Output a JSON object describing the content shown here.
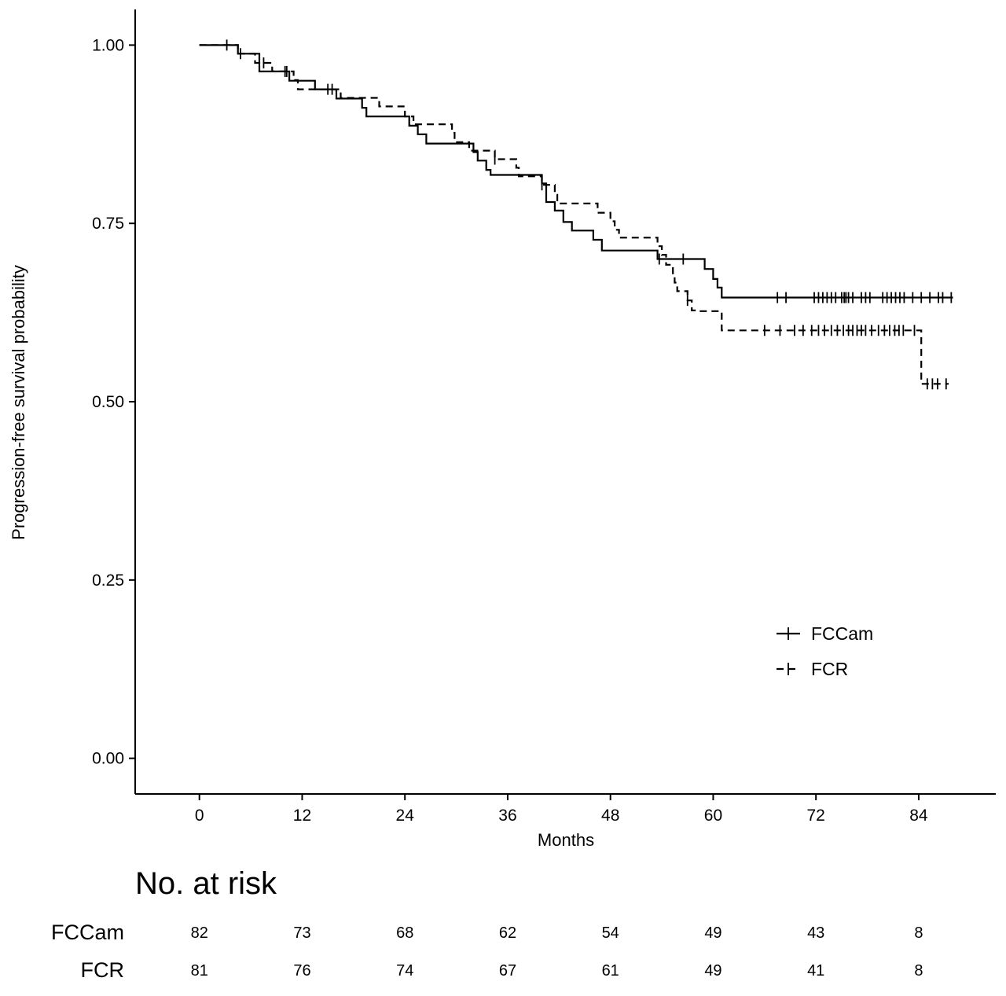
{
  "chart_data": {
    "type": "line",
    "subtype": "kaplan-meier",
    "title": "",
    "xlabel": "Months",
    "ylabel": "Progression-free survival probability",
    "xlim": [
      -7.5,
      93
    ],
    "ylim": [
      -0.05,
      1.05
    ],
    "x_ticks": [
      0,
      12,
      24,
      36,
      48,
      60,
      72,
      84
    ],
    "y_ticks": [
      0.0,
      0.25,
      0.5,
      0.75,
      1.0
    ],
    "y_tick_labels": [
      "0.00",
      "0.25",
      "0.50",
      "0.75",
      "1.00"
    ],
    "grid": false,
    "legend_position": "bottom-right",
    "series": [
      {
        "name": "FCCam",
        "linestyle": "solid",
        "steps": [
          [
            0,
            1.0
          ],
          [
            4.5,
            0.988
          ],
          [
            7,
            0.963
          ],
          [
            10.5,
            0.95
          ],
          [
            13.5,
            0.938
          ],
          [
            16,
            0.925
          ],
          [
            19,
            0.912
          ],
          [
            19.5,
            0.9
          ],
          [
            24.5,
            0.887
          ],
          [
            25.5,
            0.875
          ],
          [
            26.5,
            0.862
          ],
          [
            32,
            0.85
          ],
          [
            32.5,
            0.838
          ],
          [
            33.5,
            0.825
          ],
          [
            34,
            0.818
          ],
          [
            40,
            0.806
          ],
          [
            40.5,
            0.78
          ],
          [
            41.5,
            0.768
          ],
          [
            42.5,
            0.752
          ],
          [
            43.5,
            0.74
          ],
          [
            46,
            0.727
          ],
          [
            47,
            0.712
          ],
          [
            53.5,
            0.7
          ],
          [
            59,
            0.686
          ],
          [
            60,
            0.672
          ],
          [
            60.5,
            0.66
          ],
          [
            61,
            0.646
          ],
          [
            88,
            0.646
          ]
        ],
        "censor_times": [
          3.2,
          4.8,
          10.2,
          15,
          53.7,
          56.5,
          67.5,
          68.5,
          71.8,
          72.3,
          72.8,
          73.3,
          73.8,
          74.3,
          75,
          75.3,
          75.5,
          75.8,
          76.3,
          77.3,
          77.8,
          78.3,
          79.8,
          80.3,
          80.8,
          81.3,
          81.8,
          82.3,
          83.3,
          84.3,
          85.3,
          86.3,
          86.8,
          87.8
        ]
      },
      {
        "name": "FCR",
        "linestyle": "dashed",
        "steps": [
          [
            0,
            1.0
          ],
          [
            4.5,
            0.988
          ],
          [
            6.5,
            0.975
          ],
          [
            8.5,
            0.963
          ],
          [
            11,
            0.951
          ],
          [
            11.5,
            0.938
          ],
          [
            16.5,
            0.926
          ],
          [
            21,
            0.914
          ],
          [
            24,
            0.9
          ],
          [
            25,
            0.889
          ],
          [
            29.5,
            0.877
          ],
          [
            29.8,
            0.864
          ],
          [
            31.5,
            0.852
          ],
          [
            34.5,
            0.84
          ],
          [
            37,
            0.828
          ],
          [
            37.3,
            0.816
          ],
          [
            40,
            0.804
          ],
          [
            41.5,
            0.79
          ],
          [
            41.8,
            0.778
          ],
          [
            46.5,
            0.765
          ],
          [
            48,
            0.753
          ],
          [
            48.5,
            0.741
          ],
          [
            49,
            0.73
          ],
          [
            53.5,
            0.718
          ],
          [
            54,
            0.706
          ],
          [
            54.5,
            0.692
          ],
          [
            55.3,
            0.68
          ],
          [
            55.5,
            0.667
          ],
          [
            55.8,
            0.655
          ],
          [
            57,
            0.642
          ],
          [
            57.5,
            0.628
          ],
          [
            58,
            0.627
          ],
          [
            61,
            0.6
          ],
          [
            84,
            0.6
          ],
          [
            84.3,
            0.525
          ],
          [
            87.5,
            0.525
          ]
        ],
        "censor_times": [
          7.5,
          10,
          15.5,
          34.5,
          40,
          57,
          66,
          67.8,
          69.5,
          70.5,
          71.5,
          72.3,
          73,
          73.8,
          74.5,
          75.2,
          75.8,
          76.3,
          76.8,
          77.3,
          77.8,
          78.5,
          79.3,
          80,
          80.6,
          81.2,
          81.7,
          82.2,
          83.5,
          85,
          85.6,
          86.2,
          87.2
        ]
      }
    ],
    "risk_table": {
      "title": "No. at risk",
      "rows": [
        {
          "group": "FCCam",
          "values": [
            "82",
            "73",
            "68",
            "62",
            "54",
            "49",
            "43",
            "8"
          ]
        },
        {
          "group": "FCR",
          "values": [
            "81",
            "76",
            "74",
            "67",
            "61",
            "49",
            "41",
            "8"
          ]
        }
      ]
    }
  }
}
